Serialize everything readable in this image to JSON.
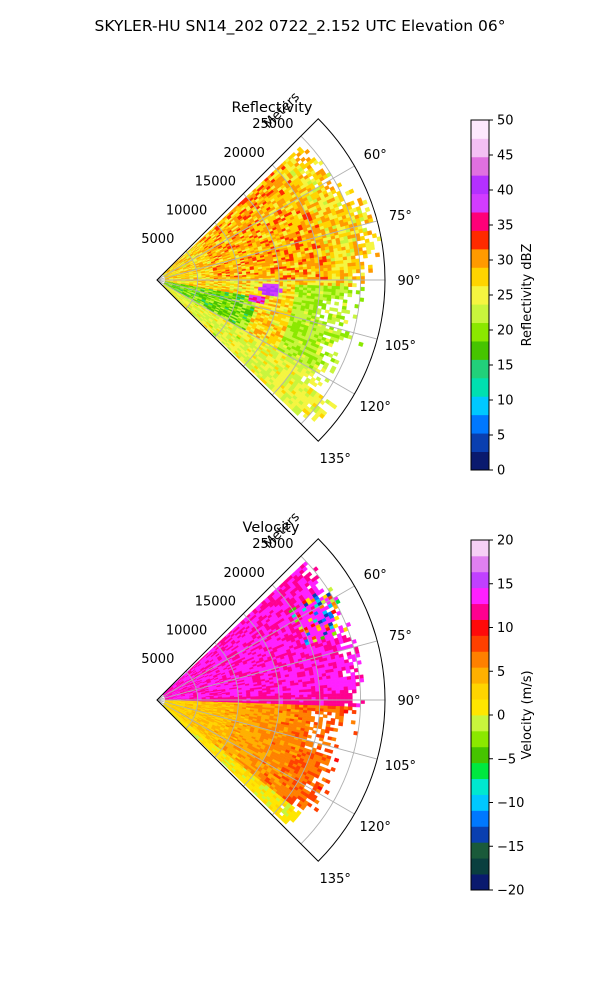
{
  "figure": {
    "suptitle": "SKYLER-HU  SN14_202  0722_2.152 UTC Elevation 06°"
  },
  "chart_data": [
    {
      "type": "heatmap",
      "projection": "polar-sector",
      "title": "Reflectivity",
      "field_label": "Reflectivity dBZ",
      "azimuth_range_deg": [
        45,
        135
      ],
      "range_max_m": 28000,
      "radial_axis_label": "Meters",
      "radial_ticks_m": [
        5000,
        10000,
        15000,
        20000,
        25000
      ],
      "radial_tick_labels": [
        "5000",
        "10000",
        "15000",
        "20000",
        "25000"
      ],
      "azimuth_ticks_deg": [
        60,
        75,
        90,
        105,
        120,
        135
      ],
      "azimuth_tick_labels": [
        "60°",
        "75°",
        "90°",
        "105°",
        "120°",
        "135°"
      ],
      "grid": true,
      "colorbar": {
        "label": "Reflectivity dBZ",
        "range": [
          0,
          50
        ],
        "ticks": [
          0,
          5,
          10,
          15,
          20,
          25,
          30,
          35,
          40,
          45,
          50
        ],
        "tick_labels": [
          "0",
          "5",
          "10",
          "15",
          "20",
          "25",
          "30",
          "35",
          "40",
          "45",
          "50"
        ],
        "colormap": [
          "#0a1a6e",
          "#0a3fb0",
          "#0078ff",
          "#00c8ff",
          "#00e0b0",
          "#22d07a",
          "#46c400",
          "#8be800",
          "#c8f53c",
          "#f5f540",
          "#ffd400",
          "#ff9a00",
          "#ff2a00",
          "#ff0078",
          "#d23cff",
          "#b430ff",
          "#e070e0",
          "#f4c0f4",
          "#fde8fd"
        ]
      },
      "description_pattern": {
        "dominant_values_dBZ": [
          25,
          30
        ],
        "low_values_near_left_edge_dBZ": [
          12,
          20
        ],
        "low_values_right_side_dBZ": [
          18,
          24
        ],
        "local_maxima_dBZ": [
          37,
          40
        ]
      }
    },
    {
      "type": "heatmap",
      "projection": "polar-sector",
      "title": "Velocity",
      "field_label": "Velocity (m/s)",
      "azimuth_range_deg": [
        45,
        135
      ],
      "range_max_m": 28000,
      "radial_axis_label": "Meters",
      "radial_ticks_m": [
        5000,
        10000,
        15000,
        20000,
        25000
      ],
      "radial_tick_labels": [
        "5000",
        "10000",
        "15000",
        "20000",
        "25000"
      ],
      "azimuth_ticks_deg": [
        60,
        75,
        90,
        105,
        120,
        135
      ],
      "azimuth_tick_labels": [
        "60°",
        "75°",
        "90°",
        "105°",
        "120°",
        "135°"
      ],
      "grid": true,
      "colorbar": {
        "label": "Velocity (m/s)",
        "range": [
          -20,
          20
        ],
        "ticks": [
          -20,
          -15,
          -10,
          -5,
          0,
          5,
          10,
          15,
          20
        ],
        "tick_labels": [
          "−20",
          "−15",
          "−10",
          "−5",
          "0",
          "5",
          "10",
          "15",
          "20"
        ],
        "colormap": [
          "#0a1a6e",
          "#0a3f3f",
          "#1a5a3a",
          "#0a3fb0",
          "#0078ff",
          "#00c8ff",
          "#00e8d0",
          "#00e840",
          "#46c400",
          "#8be800",
          "#c8f53c",
          "#ffe600",
          "#ffd400",
          "#ffb000",
          "#ff8000",
          "#ff4000",
          "#ff0a0a",
          "#ff0090",
          "#ff20ff",
          "#c040ff",
          "#e080f0",
          "#f6d0f6"
        ]
      },
      "description_pattern": {
        "north_of_90deg_m_s": [
          10,
          15
        ],
        "south_of_90deg_m_s": [
          0,
          10
        ],
        "far_range_south_m_s": [
          7,
          10
        ]
      }
    }
  ]
}
